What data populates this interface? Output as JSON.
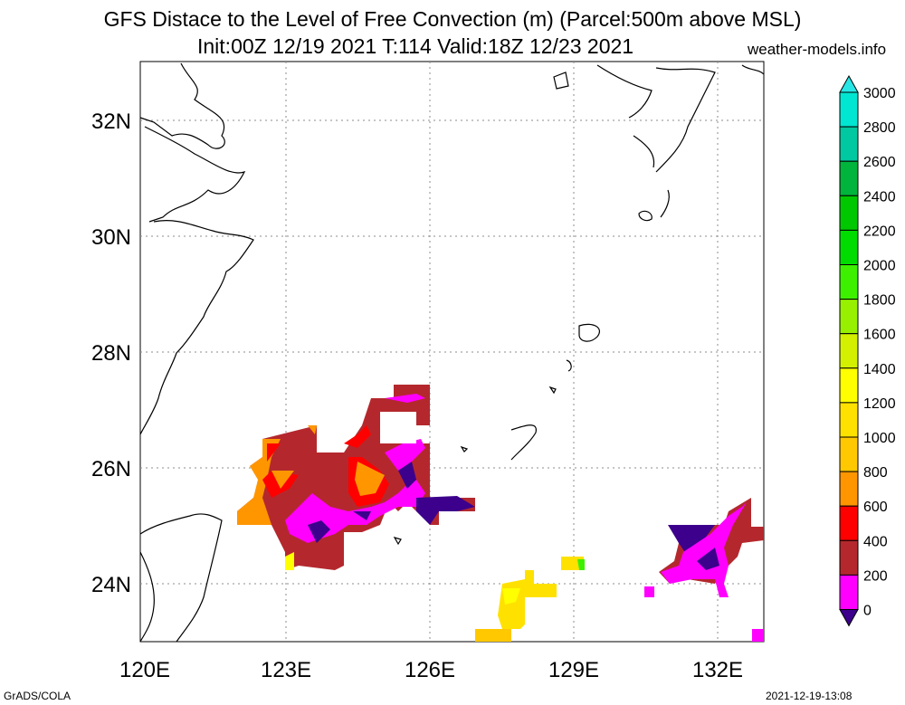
{
  "header": {
    "title_line1": "GFS Distace to the Level of Free Convection (m) (Parcel:500m above MSL)",
    "title_line2": "Init:00Z 12/19 2021 T:114 Valid:18Z 12/23 2021",
    "site": "weather-models.info"
  },
  "footer": {
    "left": "GrADS/COLA",
    "right": "2021-12-19-13:08"
  },
  "map": {
    "lon_ticks": [
      "120E",
      "123E",
      "126E",
      "129E",
      "132E"
    ],
    "lat_ticks": [
      "32N",
      "30N",
      "28N",
      "26N",
      "24N"
    ]
  },
  "colorbar": {
    "labels": [
      "3000",
      "2800",
      "2600",
      "2400",
      "2200",
      "2000",
      "1800",
      "1600",
      "1400",
      "1200",
      "1000",
      "800",
      "600",
      "400",
      "200",
      "0"
    ],
    "colors": [
      "#00e6d2",
      "#00c8a0",
      "#00b43c",
      "#00c800",
      "#00dc00",
      "#3cf000",
      "#96f000",
      "#d2f000",
      "#ffff00",
      "#ffe100",
      "#ffc800",
      "#ff9600",
      "#ff0000",
      "#b4282d",
      "#ff00ff",
      "#3c008c"
    ],
    "top_arrow_color": "#28e6e6",
    "bottom_arrow_color": "#3c008c"
  }
}
